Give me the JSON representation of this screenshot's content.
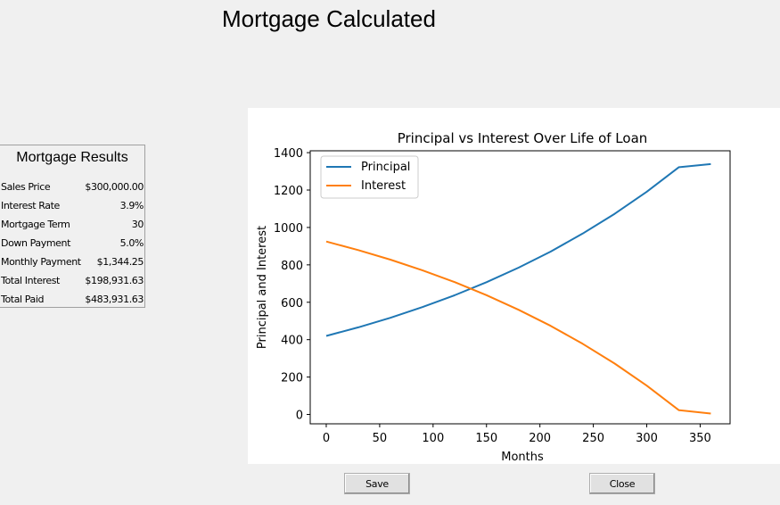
{
  "window": {
    "title": "Mortgage Calculated"
  },
  "results": {
    "title": "Mortgage Results",
    "rows": [
      {
        "label": "Sales Price",
        "value": "$300,000.00"
      },
      {
        "label": "Interest Rate",
        "value": "3.9%"
      },
      {
        "label": "Mortgage Term",
        "value": "30"
      },
      {
        "label": "Down Payment",
        "value": "5.0%"
      },
      {
        "label": "Monthly Payment",
        "value": "$1,344.25"
      },
      {
        "label": "Total Interest",
        "value": "$198,931.63"
      },
      {
        "label": "Total Paid",
        "value": "$483,931.63"
      }
    ]
  },
  "buttons": {
    "save_label": "Save",
    "close_label": "Close"
  },
  "chart_data": {
    "type": "line",
    "title": "Principal vs Interest Over Life of Loan",
    "xlabel": "Months",
    "ylabel": "Principal and Interest",
    "xlim": [
      -15,
      378
    ],
    "ylim": [
      -50,
      1410
    ],
    "xticks": [
      0,
      50,
      100,
      150,
      200,
      250,
      300,
      350
    ],
    "yticks": [
      0,
      200,
      400,
      600,
      800,
      1000,
      1200,
      1400
    ],
    "legend_position": "top-left",
    "grid": false,
    "x": [
      0,
      30,
      60,
      90,
      120,
      150,
      180,
      210,
      240,
      270,
      300,
      330,
      360
    ],
    "series": [
      {
        "name": "Principal",
        "color": "#1f77b4",
        "values": [
          420,
          466,
          517,
          574,
          637,
          707,
          785,
          871,
          967,
          1073,
          1191,
          1322,
          1339
        ]
      },
      {
        "name": "Interest",
        "color": "#ff7f0e",
        "values": [
          925,
          879,
          828,
          771,
          708,
          638,
          560,
          474,
          378,
          272,
          154,
          23,
          5
        ]
      }
    ]
  }
}
